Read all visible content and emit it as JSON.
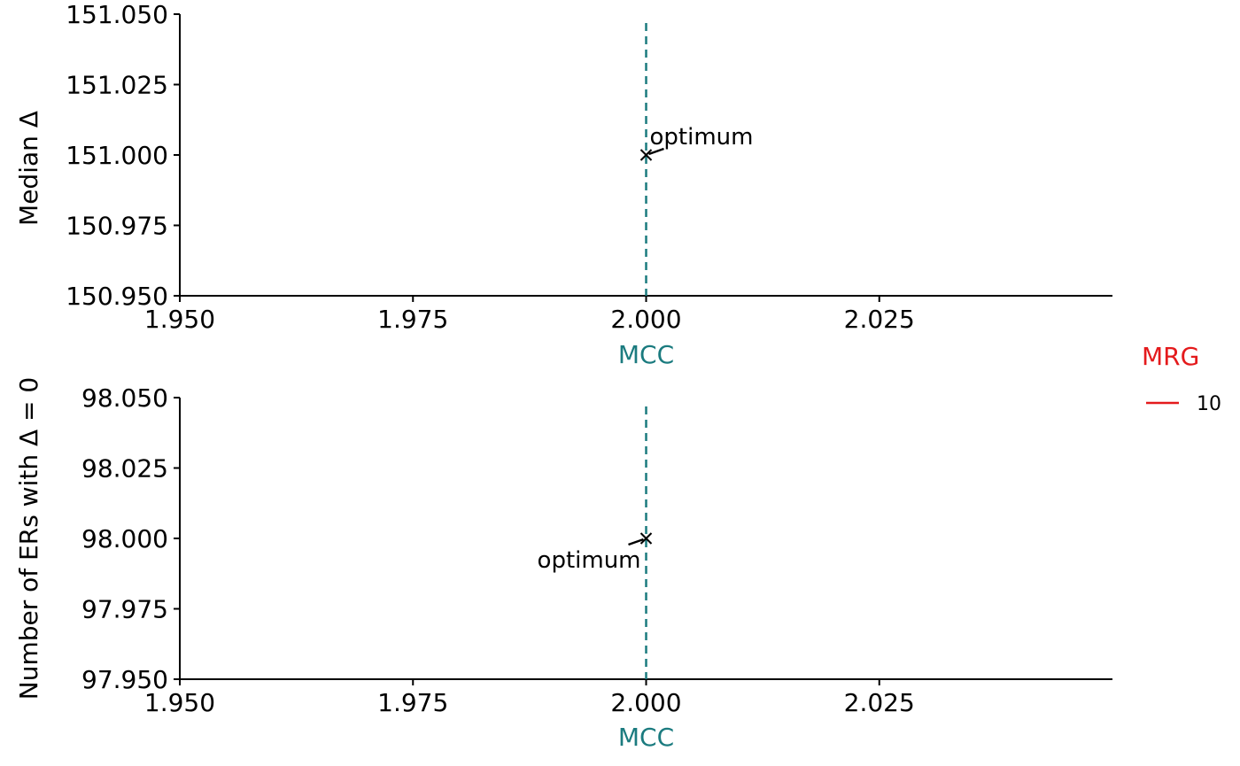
{
  "chart_data": [
    {
      "type": "scatter",
      "xlabel": "MCC",
      "ylabel": "Median Δ",
      "xlim": [
        1.95,
        2.05
      ],
      "ylim": [
        150.95,
        151.05
      ],
      "x_ticks": [
        1.95,
        1.975,
        2.0,
        2.025
      ],
      "x_tick_labels": [
        "1.950",
        "1.975",
        "2.000",
        "2.025"
      ],
      "y_ticks": [
        150.95,
        150.975,
        151.0,
        151.025,
        151.05
      ],
      "y_tick_labels": [
        "150.950",
        "150.975",
        "151.000",
        "151.025",
        "151.050"
      ],
      "vline_x": 2.0,
      "points": [
        {
          "x": 2.0,
          "y": 151.0,
          "marker": "x"
        }
      ],
      "annotation": {
        "text": "optimum",
        "x": 2.0,
        "y": 151.0,
        "position": "upper-right"
      },
      "grid": false
    },
    {
      "type": "scatter",
      "xlabel": "MCC",
      "ylabel": "Number of ERs with  Δ = 0",
      "xlim": [
        1.95,
        2.05
      ],
      "ylim": [
        97.95,
        98.05
      ],
      "x_ticks": [
        1.95,
        1.975,
        2.0,
        2.025
      ],
      "x_tick_labels": [
        "1.950",
        "1.975",
        "2.000",
        "2.025"
      ],
      "y_ticks": [
        97.95,
        97.975,
        98.0,
        98.025,
        98.05
      ],
      "y_tick_labels": [
        "97.950",
        "97.975",
        "98.000",
        "98.025",
        "98.050"
      ],
      "vline_x": 2.0,
      "points": [
        {
          "x": 2.0,
          "y": 98.0,
          "marker": "x"
        }
      ],
      "annotation": {
        "text": "optimum",
        "x": 2.0,
        "y": 98.0,
        "position": "lower-left"
      },
      "grid": false
    }
  ],
  "legend": {
    "title": "MRG",
    "placement": "right",
    "entries": [
      {
        "label": "10",
        "color": "#e41a1c"
      }
    ]
  },
  "colors": {
    "vline": "#1b7b7f",
    "xlabel": "#1b7b7f",
    "legend_title": "#e41a1c",
    "marker": "#000000",
    "axis": "#000000"
  }
}
